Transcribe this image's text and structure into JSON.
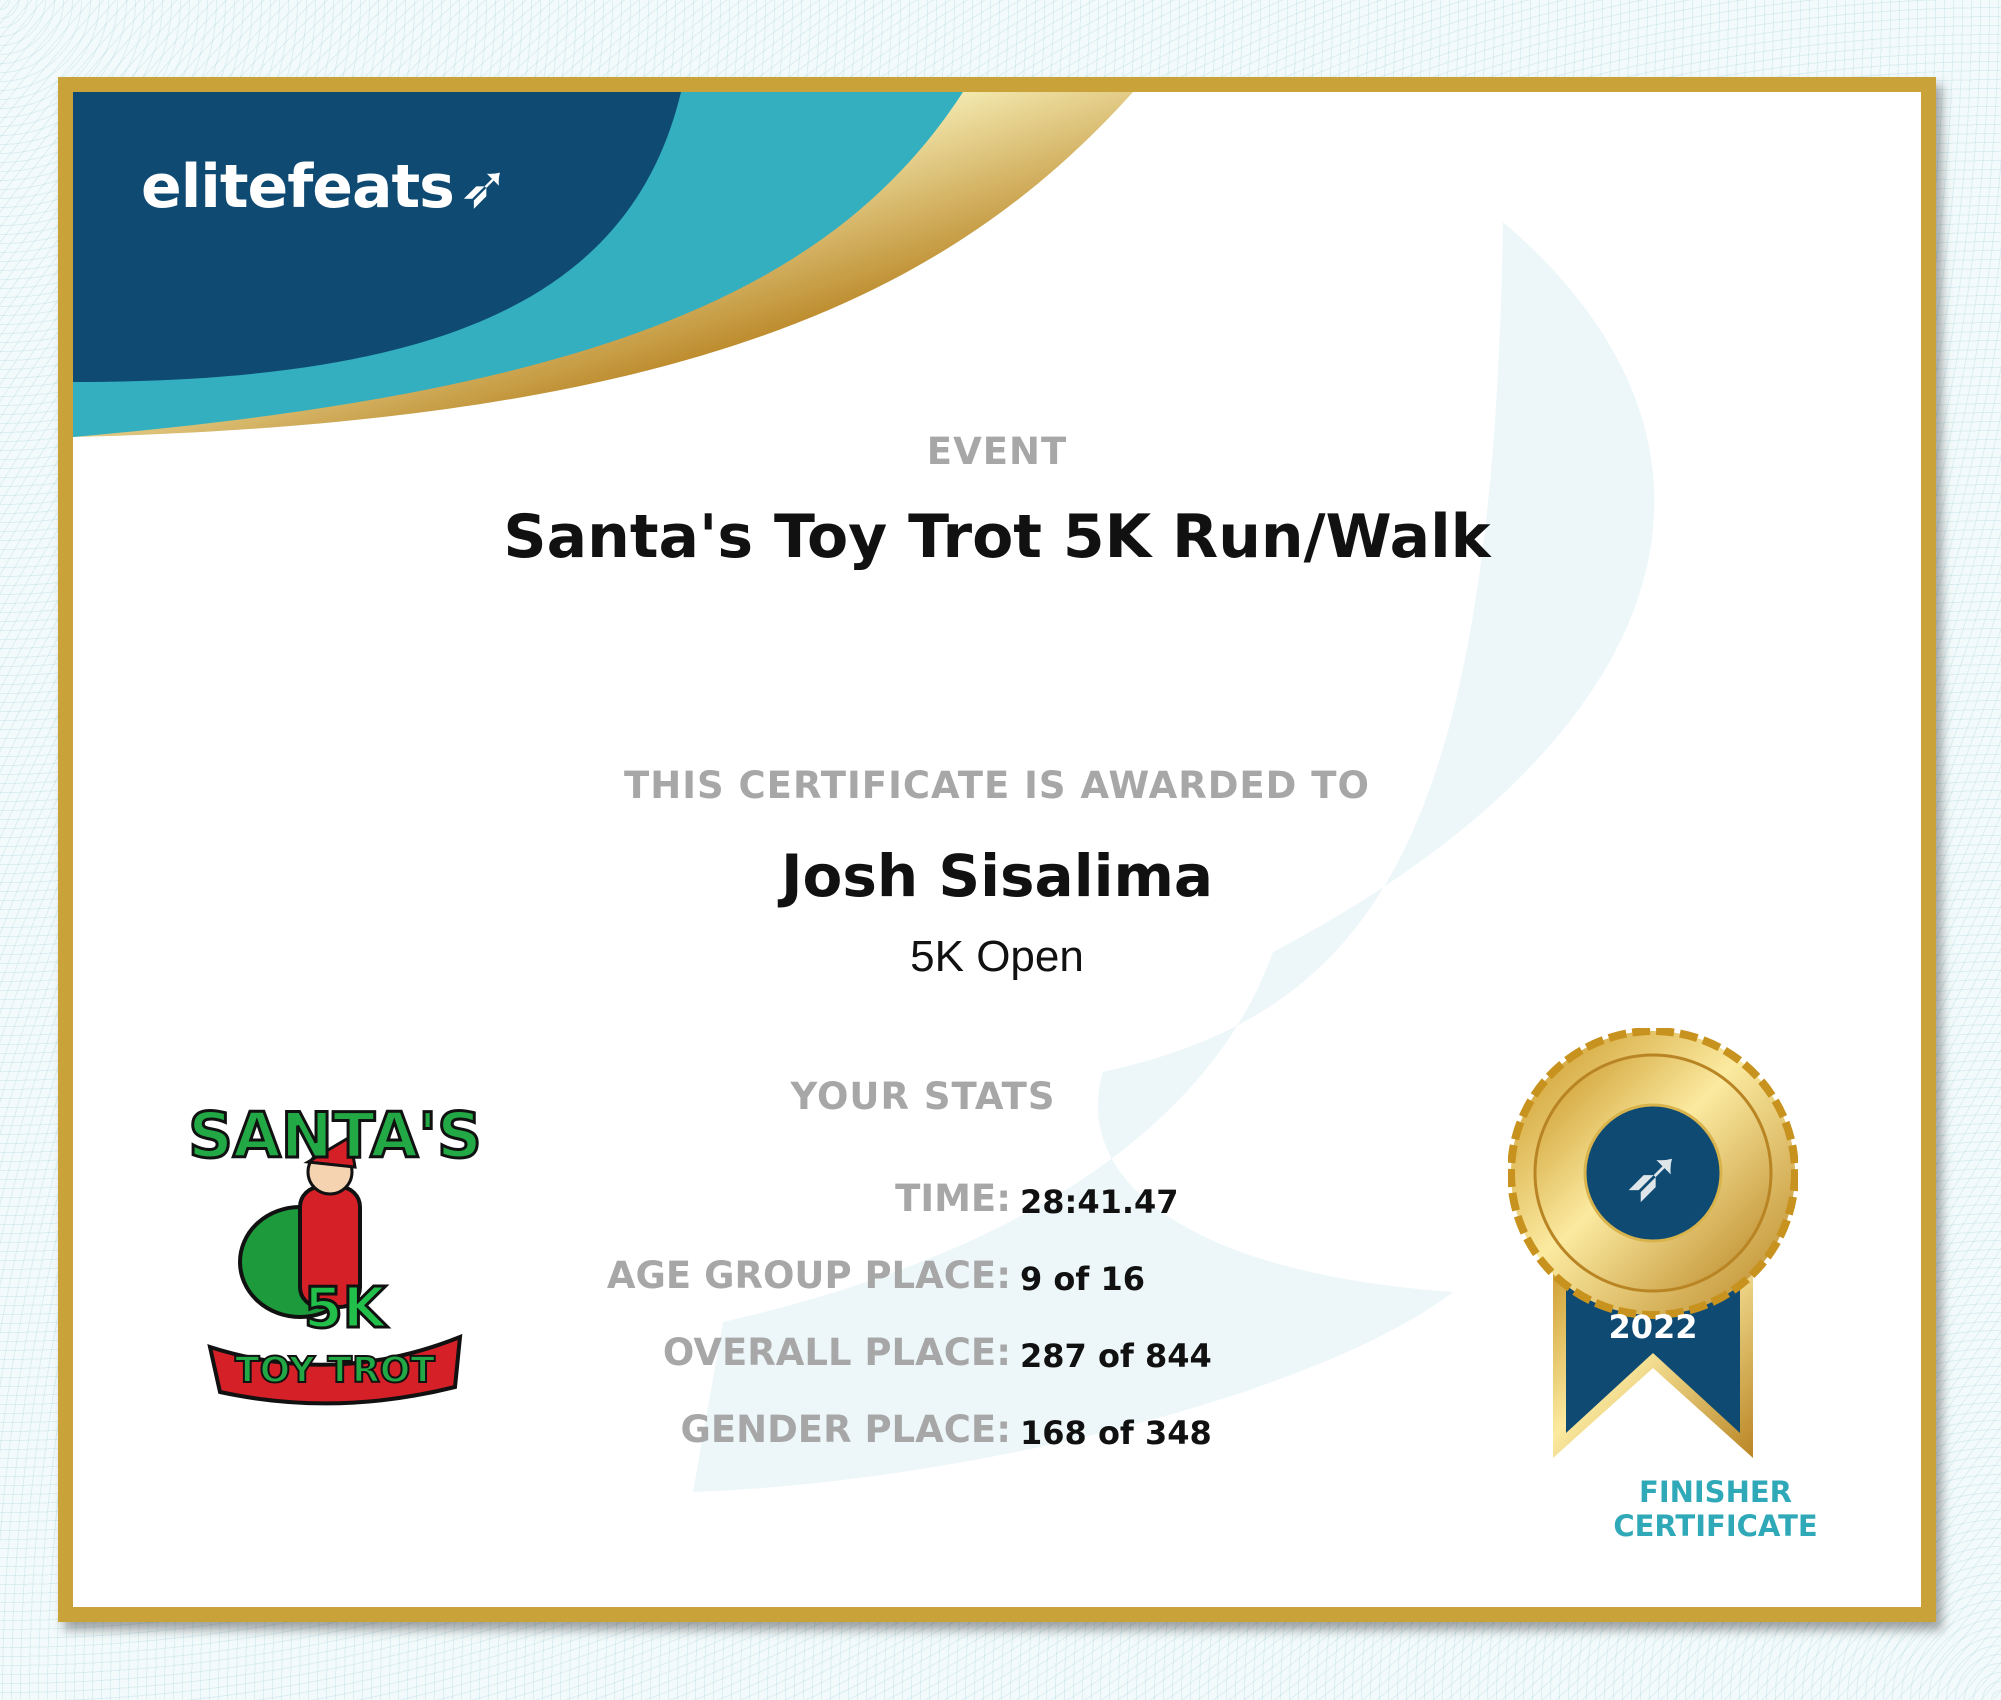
{
  "brand": {
    "logo_text": "elitefeats",
    "colors": {
      "navy": "#0f4a72",
      "teal": "#33afbf",
      "gold": "#c9a23a"
    }
  },
  "event": {
    "label": "EVENT",
    "title": "Santa's Toy Trot 5K Run/Walk"
  },
  "award": {
    "label": "THIS CERTIFICATE IS AWARDED TO",
    "name": "Josh Sisalima",
    "division": "5K Open"
  },
  "stats": {
    "title": "YOUR STATS",
    "rows": [
      {
        "label": "TIME:",
        "value": "28:41.47"
      },
      {
        "label": "AGE GROUP PLACE:",
        "value": "9 of 16"
      },
      {
        "label": "OVERALL PLACE:",
        "value": "287 of 844"
      },
      {
        "label": "GENDER PLACE:",
        "value": "168 of 348"
      }
    ]
  },
  "event_logo": {
    "top": "SANTA'S",
    "mid": "5K",
    "bottom": "TOY TROT"
  },
  "medal": {
    "year": "2022",
    "line1": "FINISHER",
    "line2": "CERTIFICATE"
  }
}
